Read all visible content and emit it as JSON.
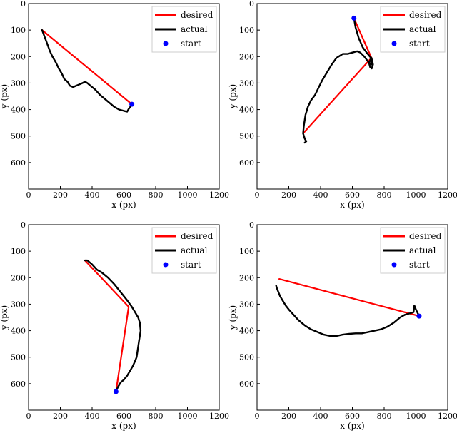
{
  "chart_data": [
    {
      "type": "line",
      "title": "",
      "xlabel": "x (px)",
      "ylabel": "y (px)",
      "xlim": [
        0,
        1200
      ],
      "ylim": [
        700,
        0
      ],
      "xticks": [
        0,
        200,
        400,
        600,
        800,
        1000,
        1200
      ],
      "yticks": [
        0,
        100,
        200,
        300,
        400,
        500,
        600
      ],
      "grid": false,
      "legend": {
        "location": "top-right",
        "entries": [
          "desired",
          "actual",
          "start"
        ]
      },
      "series": [
        {
          "name": "desired",
          "color": "#ff0000",
          "x": [
            85,
            650
          ],
          "y": [
            100,
            380
          ]
        },
        {
          "name": "actual",
          "color": "#000000",
          "x": [
            85,
            110,
            135,
            150,
            170,
            190,
            210,
            225,
            245,
            260,
            280,
            300,
            320,
            340,
            355,
            370,
            380,
            400,
            420,
            450,
            480,
            510,
            540,
            570,
            600,
            620,
            630,
            640,
            650
          ],
          "y": [
            100,
            140,
            180,
            200,
            220,
            245,
            265,
            285,
            295,
            310,
            315,
            310,
            305,
            300,
            295,
            300,
            305,
            315,
            325,
            345,
            360,
            375,
            390,
            400,
            405,
            408,
            398,
            390,
            380
          ]
        },
        {
          "name": "start",
          "color": "#0000ff",
          "marker": "circle",
          "x": [
            650
          ],
          "y": [
            380
          ]
        }
      ]
    },
    {
      "type": "line",
      "title": "",
      "xlabel": "x (px)",
      "ylabel": "y (px)",
      "xlim": [
        0,
        1200
      ],
      "ylim": [
        700,
        0
      ],
      "xticks": [
        0,
        200,
        400,
        600,
        800,
        1000,
        1200
      ],
      "yticks": [
        0,
        100,
        200,
        300,
        400,
        500,
        600
      ],
      "grid": false,
      "legend": {
        "location": "top-right",
        "entries": [
          "desired",
          "actual",
          "start"
        ]
      },
      "series": [
        {
          "name": "desired",
          "color": "#ff0000",
          "x": [
            610,
            720,
            290
          ],
          "y": [
            55,
            205,
            490
          ]
        },
        {
          "name": "actual",
          "color": "#000000",
          "x": [
            610,
            620,
            640,
            665,
            690,
            710,
            720,
            725,
            730,
            722,
            712,
            705,
            715,
            725,
            720,
            700,
            675,
            650,
            630,
            600,
            570,
            540,
            500,
            470,
            440,
            410,
            385,
            365,
            340,
            320,
            305,
            295,
            290,
            300,
            310,
            300
          ],
          "y": [
            55,
            90,
            130,
            165,
            185,
            200,
            205,
            215,
            230,
            245,
            240,
            225,
            210,
            215,
            230,
            220,
            200,
            185,
            180,
            185,
            190,
            190,
            205,
            230,
            260,
            290,
            320,
            345,
            365,
            390,
            420,
            460,
            490,
            510,
            520,
            525
          ]
        },
        {
          "name": "start",
          "color": "#0000ff",
          "marker": "circle",
          "x": [
            610
          ],
          "y": [
            55
          ]
        }
      ]
    },
    {
      "type": "line",
      "title": "",
      "xlabel": "x (px)",
      "ylabel": "y (px)",
      "xlim": [
        0,
        1200
      ],
      "ylim": [
        700,
        0
      ],
      "xticks": [
        0,
        200,
        400,
        600,
        800,
        1000,
        1200
      ],
      "yticks": [
        0,
        100,
        200,
        300,
        400,
        500,
        600
      ],
      "grid": false,
      "legend": {
        "location": "top-right",
        "entries": [
          "desired",
          "actual",
          "start"
        ]
      },
      "series": [
        {
          "name": "desired",
          "color": "#ff0000",
          "x": [
            355,
            630,
            550
          ],
          "y": [
            135,
            310,
            630
          ]
        },
        {
          "name": "actual",
          "color": "#000000",
          "x": [
            355,
            370,
            400,
            430,
            460,
            500,
            540,
            580,
            620,
            650,
            670,
            690,
            700,
            705,
            700,
            695,
            690,
            685,
            680,
            670,
            655,
            640,
            620,
            600,
            580,
            565,
            555,
            550
          ],
          "y": [
            135,
            135,
            150,
            170,
            180,
            200,
            225,
            255,
            285,
            310,
            330,
            350,
            370,
            400,
            420,
            440,
            460,
            480,
            500,
            515,
            535,
            550,
            570,
            585,
            595,
            610,
            622,
            630
          ]
        },
        {
          "name": "start",
          "color": "#0000ff",
          "marker": "circle",
          "x": [
            550
          ],
          "y": [
            630
          ]
        }
      ]
    },
    {
      "type": "line",
      "title": "",
      "xlabel": "x (px)",
      "ylabel": "y (px)",
      "xlim": [
        0,
        1200
      ],
      "ylim": [
        700,
        0
      ],
      "xticks": [
        0,
        200,
        400,
        600,
        800,
        1000,
        1200
      ],
      "yticks": [
        0,
        100,
        200,
        300,
        400,
        500,
        600
      ],
      "grid": false,
      "legend": {
        "location": "top-right",
        "entries": [
          "desired",
          "actual",
          "start"
        ]
      },
      "series": [
        {
          "name": "desired",
          "color": "#ff0000",
          "x": [
            140,
            1020
          ],
          "y": [
            205,
            345
          ]
        },
        {
          "name": "actual",
          "color": "#000000",
          "x": [
            1020,
            1000,
            990,
            985,
            960,
            930,
            900,
            860,
            820,
            780,
            740,
            700,
            660,
            620,
            580,
            540,
            500,
            460,
            420,
            380,
            340,
            300,
            260,
            230,
            200,
            180,
            160,
            145,
            135,
            125,
            120
          ],
          "y": [
            345,
            320,
            305,
            330,
            335,
            340,
            350,
            370,
            385,
            395,
            400,
            405,
            410,
            410,
            412,
            415,
            420,
            420,
            415,
            405,
            395,
            380,
            360,
            340,
            320,
            305,
            285,
            270,
            255,
            240,
            230
          ]
        },
        {
          "name": "start",
          "color": "#0000ff",
          "marker": "circle",
          "x": [
            1020
          ],
          "y": [
            345
          ]
        }
      ]
    }
  ]
}
